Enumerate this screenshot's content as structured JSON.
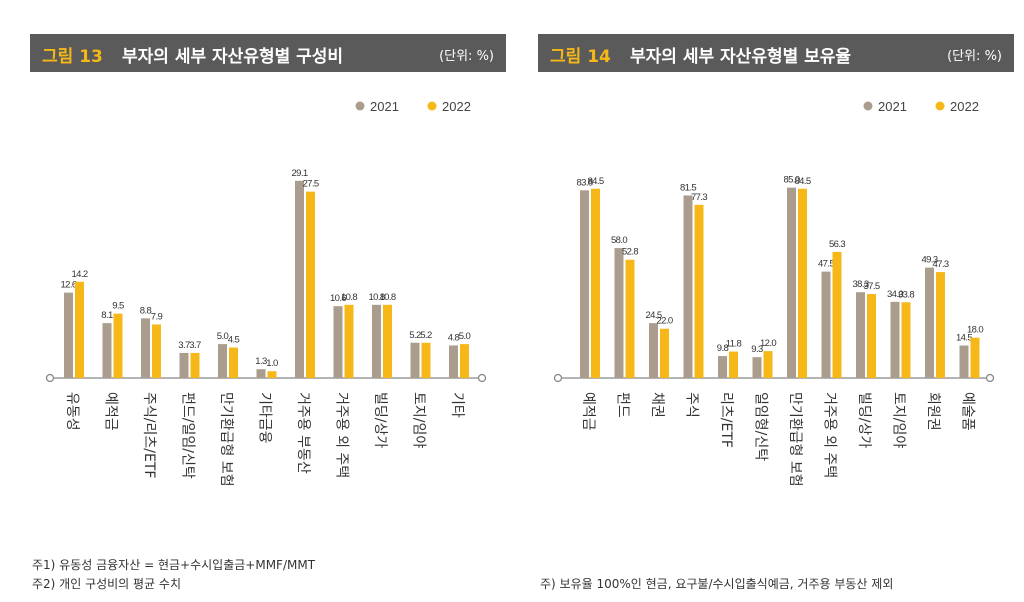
{
  "colors": {
    "y2021": "#ab9d8e",
    "y2022": "#f6b818",
    "bar_dark": "#5a5a5a",
    "axis": "#888888"
  },
  "legend": [
    "2021",
    "2022"
  ],
  "charts": [
    {
      "number": "그림 13",
      "title": "부자의 세부 자산유형별 구성비",
      "unit": "(단위: %)",
      "notes": [
        "주1) 유동성 금융자산 = 현금+수시입출금+MMF/MMT",
        "주2) 개인 구성비의 평균 수치"
      ]
    },
    {
      "number": "그림 14",
      "title": "부자의 세부 자산유형별 보유율",
      "unit": "(단위: %)",
      "notes": [
        "주) 보유율 100%인 현금, 요구불/수시입출식예금, 거주용 부동산 제외"
      ]
    }
  ],
  "chart_data": [
    {
      "type": "bar",
      "title": "부자의 세부 자산유형별 구성비",
      "categories": [
        "유동성",
        "예적금",
        "주식/리츠/ETF",
        "펀드/일임/신탁",
        "만기환급형 보험",
        "기타금융",
        "거주용 부동산",
        "거주용 외 주택",
        "빌딩/상가",
        "토지/임야",
        "기타"
      ],
      "series": [
        {
          "name": "2021",
          "values": [
            12.6,
            8.1,
            8.8,
            3.7,
            5.0,
            1.3,
            29.1,
            10.6,
            10.8,
            5.2,
            4.8
          ]
        },
        {
          "name": "2022",
          "values": [
            14.2,
            9.5,
            7.9,
            3.7,
            4.5,
            1.0,
            27.5,
            10.8,
            10.8,
            5.2,
            5.0
          ]
        }
      ],
      "ylim": [
        0,
        32
      ],
      "legend_position": "top-right",
      "grid": false
    },
    {
      "type": "bar",
      "title": "부자의 세부 자산유형별 보유율",
      "categories": [
        "예적금",
        "펀드",
        "채권",
        "주식",
        "리츠/ETF",
        "일임형/신탁",
        "만기환급형 보험",
        "거주용 외 주택",
        "빌딩/상가",
        "토지/임야",
        "회원권",
        "예술품"
      ],
      "series": [
        {
          "name": "2021",
          "values": [
            83.8,
            58.0,
            24.5,
            81.5,
            9.8,
            9.3,
            85.0,
            47.5,
            38.3,
            34.0,
            49.3,
            14.5
          ]
        },
        {
          "name": "2022",
          "values": [
            84.5,
            52.8,
            22.0,
            77.3,
            11.8,
            12.0,
            84.5,
            56.3,
            37.5,
            33.8,
            47.3,
            18.0
          ]
        }
      ],
      "ylim": [
        0,
        94
      ],
      "legend_position": "top-right",
      "grid": false
    }
  ]
}
